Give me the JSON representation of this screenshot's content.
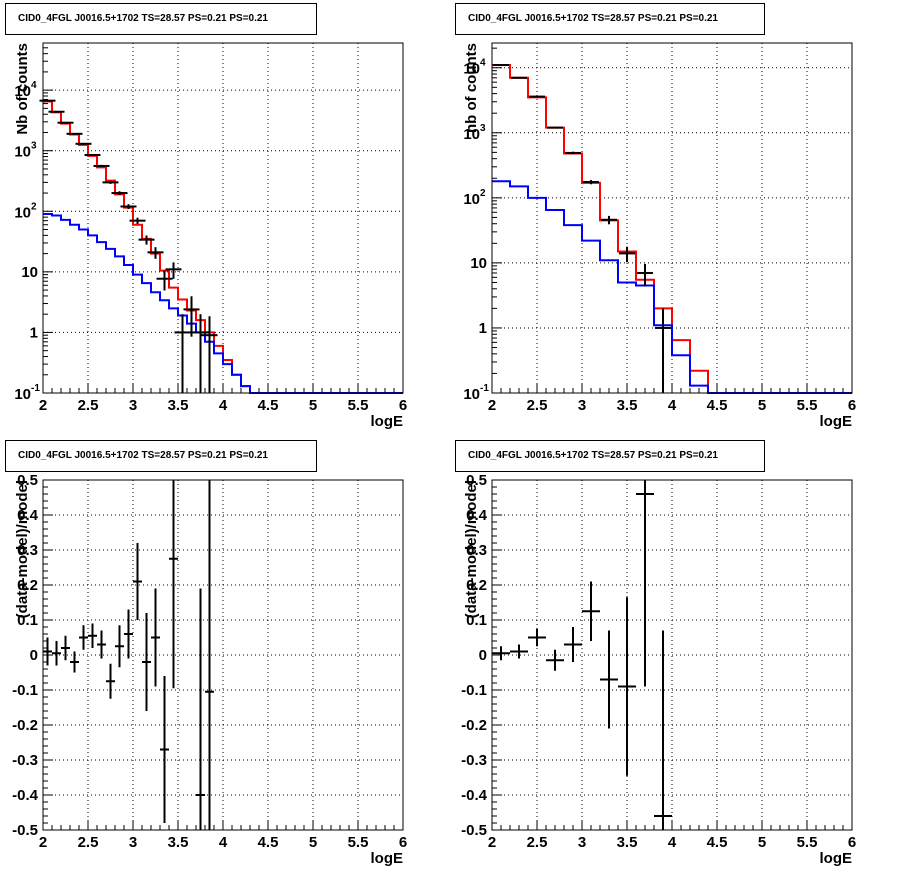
{
  "panels": [
    {
      "title": "CID0_4FGL J0016.5+1702 TS=28.57 PS=0.21 PS=0.21",
      "chart_data": {
        "type": "histogram",
        "xlabel": "logE",
        "ylabel": "Nb of counts",
        "xlim": [
          2,
          6
        ],
        "ylim": [
          0.1,
          60000
        ],
        "yscale": "log",
        "grid": true,
        "x_ticks": [
          "2",
          "2.5",
          "3",
          "3.5",
          "4",
          "4.5",
          "5",
          "5.5",
          "6"
        ],
        "y_ticks": [
          "10^-1",
          "1",
          "10",
          "10^2",
          "10^3",
          "10^4"
        ],
        "bin_edges": [
          2.0,
          2.1,
          2.2,
          2.3,
          2.4,
          2.5,
          2.6,
          2.7,
          2.8,
          2.9,
          3.0,
          3.1,
          3.2,
          3.3,
          3.4,
          3.5,
          3.6,
          3.7,
          3.8,
          3.9,
          4.0,
          4.1,
          4.2,
          4.3,
          4.4,
          4.5,
          4.6,
          4.7,
          4.8,
          4.9,
          5.0,
          5.1,
          5.2,
          5.3,
          5.4,
          5.5,
          5.6,
          5.7,
          5.8,
          5.9,
          6.0
        ],
        "series": [
          {
            "color": "#ff0000",
            "values": [
              6500,
              4300,
              2800,
              1850,
              1250,
              820,
              530,
              320,
              190,
              115,
              60,
              35,
              20,
              10.5,
              5.5,
              3.5,
              2.3,
              1.6,
              1.0,
              0.6,
              0.35,
              0.2,
              0.13,
              0.1,
              0.1,
              0.1,
              0.1,
              0.1,
              0.1,
              0.1,
              0.1,
              0.1,
              0.1,
              0.1,
              0.1,
              0.1,
              0.1,
              0.1,
              0.1,
              0.1
            ]
          },
          {
            "color": "#0000ff",
            "values": [
              90,
              85,
              72,
              60,
              50,
              40,
              31,
              24,
              18,
              13,
              9,
              6.5,
              4.6,
              3.4,
              2.5,
              1.9,
              1.4,
              1.0,
              0.7,
              0.45,
              0.3,
              0.2,
              0.13,
              0.1,
              0.1,
              0.1,
              0.1,
              0.1,
              0.1,
              0.1,
              0.1,
              0.1,
              0.1,
              0.1,
              0.1,
              0.1,
              0.1,
              0.1,
              0.1,
              0.1
            ]
          }
        ],
        "data_points": [
          {
            "x": 2.05,
            "y": 6700
          },
          {
            "x": 2.15,
            "y": 4400
          },
          {
            "x": 2.25,
            "y": 2900
          },
          {
            "x": 2.35,
            "y": 1900
          },
          {
            "x": 2.45,
            "y": 1300
          },
          {
            "x": 2.55,
            "y": 850
          },
          {
            "x": 2.65,
            "y": 560
          },
          {
            "x": 2.75,
            "y": 300
          },
          {
            "x": 2.85,
            "y": 200
          },
          {
            "x": 2.95,
            "y": 120
          },
          {
            "x": 3.05,
            "y": 70
          },
          {
            "x": 3.15,
            "y": 34
          },
          {
            "x": 3.25,
            "y": 21
          },
          {
            "x": 3.35,
            "y": 7.7
          },
          {
            "x": 3.45,
            "y": 11
          },
          {
            "x": 3.55,
            "y": 1.0
          },
          {
            "x": 3.65,
            "y": 2.4
          },
          {
            "x": 3.75,
            "y": 1.0
          },
          {
            "x": 3.85,
            "y": 0.9
          }
        ]
      }
    },
    {
      "title": "CID0_4FGL J0016.5+1702 TS=28.57 PS=0.21 PS=0.21",
      "chart_data": {
        "type": "histogram",
        "xlabel": "logE",
        "ylabel": "nb of counts",
        "xlim": [
          2,
          6
        ],
        "ylim": [
          0.1,
          24000
        ],
        "yscale": "log",
        "grid": true,
        "x_ticks": [
          "2",
          "2.5",
          "3",
          "3.5",
          "4",
          "4.5",
          "5",
          "5.5",
          "6"
        ],
        "y_ticks": [
          "10^-1",
          "1",
          "10",
          "10^2",
          "10^3",
          "10^4"
        ],
        "bin_edges": [
          2.0,
          2.2,
          2.4,
          2.6,
          2.8,
          3.0,
          3.2,
          3.4,
          3.6,
          3.8,
          4.0,
          4.2,
          4.4,
          4.6,
          4.8,
          5.0,
          5.2,
          5.4,
          5.6,
          5.8,
          6.0
        ],
        "series": [
          {
            "color": "#ff0000",
            "values": [
              11000,
              7000,
              3500,
              1200,
              480,
              170,
              45,
              15,
              5.5,
              2.0,
              0.65,
              0.22,
              0.1,
              0.1,
              0.1,
              0.1,
              0.1,
              0.1,
              0.1,
              0.1
            ]
          },
          {
            "color": "#0000ff",
            "values": [
              180,
              150,
              100,
              65,
              38,
              22,
              11,
              5.0,
              4.5,
              1.1,
              0.38,
              0.13,
              0.1,
              0.1,
              0.1,
              0.1,
              0.1,
              0.1,
              0.1,
              0.1
            ]
          }
        ],
        "data_points": [
          {
            "x": 2.1,
            "y": 11000
          },
          {
            "x": 2.3,
            "y": 7000
          },
          {
            "x": 2.5,
            "y": 3600
          },
          {
            "x": 2.7,
            "y": 1200
          },
          {
            "x": 2.9,
            "y": 490
          },
          {
            "x": 3.1,
            "y": 175
          },
          {
            "x": 3.3,
            "y": 46
          },
          {
            "x": 3.5,
            "y": 14
          },
          {
            "x": 3.7,
            "y": 7
          },
          {
            "x": 3.9,
            "y": 1.0
          }
        ]
      }
    },
    {
      "title": "CID0_4FGL J0016.5+1702 TS=28.57 PS=0.21 PS=0.21",
      "chart_data": {
        "type": "scatter",
        "xlabel": "logE",
        "ylabel": "(data-model)/model",
        "xlim": [
          2,
          6
        ],
        "ylim": [
          -0.5,
          0.5
        ],
        "grid": true,
        "x_ticks": [
          "2",
          "2.5",
          "3",
          "3.5",
          "4",
          "4.5",
          "5",
          "5.5",
          "6"
        ],
        "y_ticks": [
          "-0.5",
          "-0.4",
          "-0.3",
          "-0.2",
          "-0.1",
          "0",
          "0.1",
          "0.2",
          "0.3",
          "0.4",
          "0.5"
        ],
        "points": [
          {
            "x": 2.05,
            "y": 0.01,
            "err": 0.04
          },
          {
            "x": 2.15,
            "y": 0.005,
            "err": 0.035
          },
          {
            "x": 2.25,
            "y": 0.02,
            "err": 0.035
          },
          {
            "x": 2.35,
            "y": -0.02,
            "err": 0.03
          },
          {
            "x": 2.45,
            "y": 0.05,
            "err": 0.035
          },
          {
            "x": 2.55,
            "y": 0.055,
            "err": 0.035
          },
          {
            "x": 2.65,
            "y": 0.03,
            "err": 0.04
          },
          {
            "x": 2.75,
            "y": -0.075,
            "err": 0.05
          },
          {
            "x": 2.85,
            "y": 0.025,
            "err": 0.06
          },
          {
            "x": 2.95,
            "y": 0.06,
            "err": 0.07
          },
          {
            "x": 3.05,
            "y": 0.21,
            "err": 0.11
          },
          {
            "x": 3.15,
            "y": -0.02,
            "err": 0.14
          },
          {
            "x": 3.25,
            "y": 0.05,
            "err": 0.14
          },
          {
            "x": 3.35,
            "y": -0.27,
            "err": 0.21
          },
          {
            "x": 3.45,
            "y": 0.275,
            "err": 0.37
          },
          {
            "x": 3.75,
            "y": -0.4,
            "err": 0.59
          },
          {
            "x": 3.85,
            "y": -0.105,
            "err": 0.61
          }
        ]
      }
    },
    {
      "title": "CID0_4FGL J0016.5+1702 TS=28.57 PS=0.21 PS=0.21",
      "chart_data": {
        "type": "scatter",
        "xlabel": "logE",
        "ylabel": "(data-model)/model",
        "xlim": [
          2,
          6
        ],
        "ylim": [
          -0.5,
          0.5
        ],
        "grid": true,
        "x_ticks": [
          "2",
          "2.5",
          "3",
          "3.5",
          "4",
          "4.5",
          "5",
          "5.5",
          "6"
        ],
        "y_ticks": [
          "-0.5",
          "-0.4",
          "-0.3",
          "-0.2",
          "-0.1",
          "0",
          "0.1",
          "0.2",
          "0.3",
          "0.4",
          "0.5"
        ],
        "points": [
          {
            "x": 2.1,
            "y": 0.005,
            "err": 0.02
          },
          {
            "x": 2.3,
            "y": 0.01,
            "err": 0.02
          },
          {
            "x": 2.5,
            "y": 0.05,
            "err": 0.025
          },
          {
            "x": 2.7,
            "y": -0.015,
            "err": 0.03
          },
          {
            "x": 2.9,
            "y": 0.03,
            "err": 0.05
          },
          {
            "x": 3.1,
            "y": 0.125,
            "err": 0.085
          },
          {
            "x": 3.3,
            "y": -0.07,
            "err": 0.14
          },
          {
            "x": 3.5,
            "y": -0.09,
            "err": 0.255
          },
          {
            "x": 3.7,
            "y": 0.46,
            "err": 0.55
          },
          {
            "x": 3.9,
            "y": -0.46,
            "err": 0.53
          }
        ]
      }
    }
  ]
}
